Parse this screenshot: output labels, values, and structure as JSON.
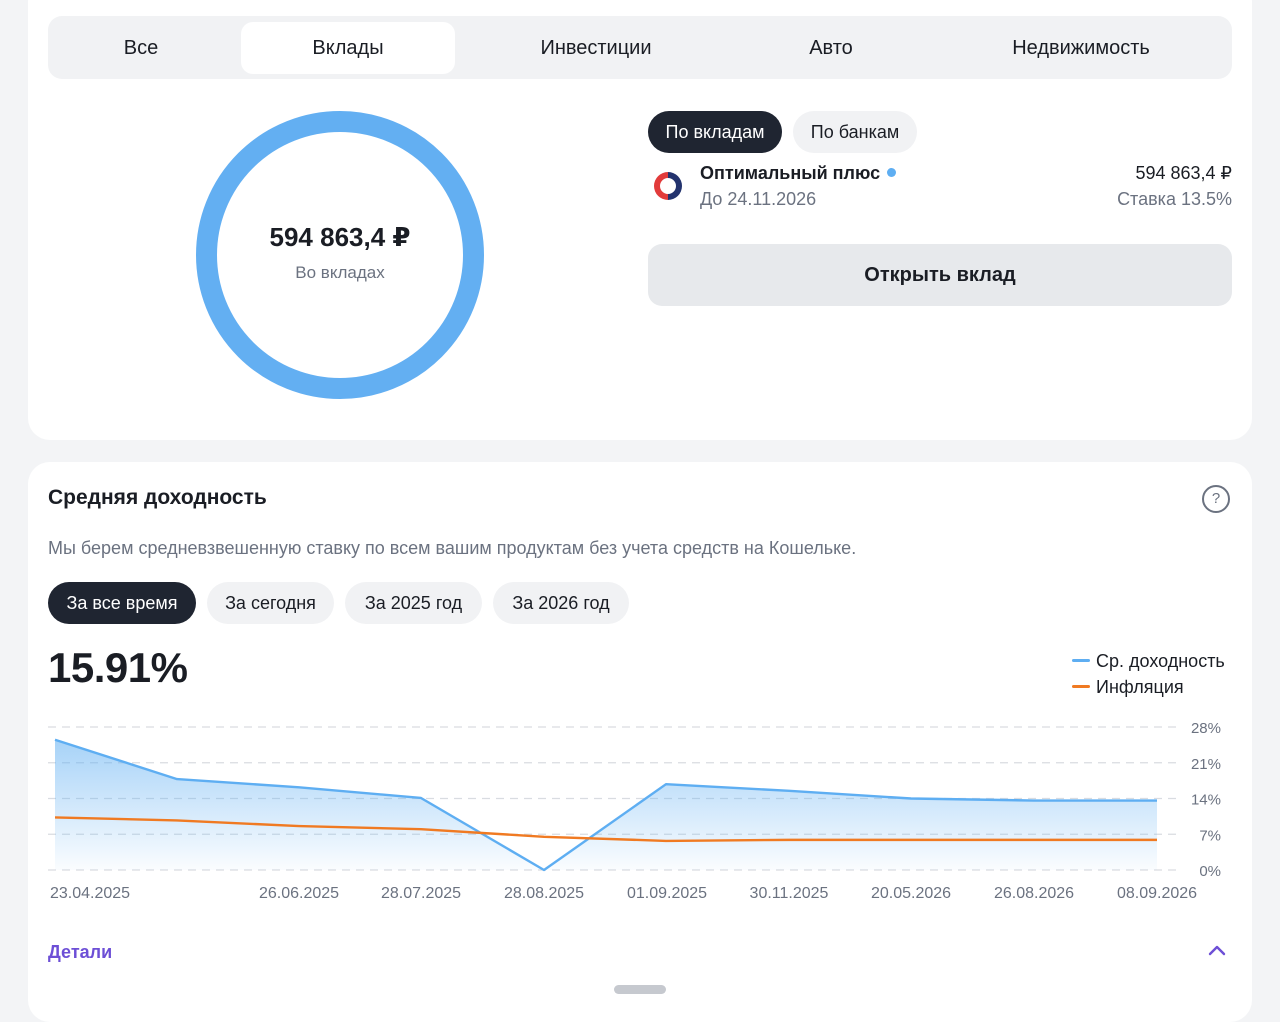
{
  "tabs": [
    {
      "label": "Все",
      "active": false
    },
    {
      "label": "Вклады",
      "active": true
    },
    {
      "label": "Инвестиции",
      "active": false
    },
    {
      "label": "Авто",
      "active": false
    },
    {
      "label": "Недвижимость",
      "active": false
    }
  ],
  "summary": {
    "amount": "594 863,4 ₽",
    "caption": "Во вкладах",
    "donut_color": "#63aff2",
    "donut_share": 1.0
  },
  "view_toggle": {
    "by_deposits": "По вкладам",
    "by_banks": "По банкам",
    "selected": "by_deposits"
  },
  "deposit": {
    "name": "Оптимальный плюс",
    "until": "До 24.11.2026",
    "amount": "594 863,4 ₽",
    "rate": "Ставка 13.5%",
    "logo_icon": "bank-logo-icon",
    "dot_color": "#5eaef2"
  },
  "open_button": "Открыть вклад",
  "yield_section": {
    "title": "Средняя доходность",
    "description": "Мы берем средневзвешенную ставку по всем вашим продуктам без учета средств на Кошельке.",
    "periods": [
      "За все время",
      "За сегодня",
      "За 2025 год",
      "За 2026 год"
    ],
    "selected_period": "За все время",
    "value": "15.91%",
    "details_label": "Детали"
  },
  "colors": {
    "accent_dark": "#1f2531",
    "yield_line": "#5eaef2",
    "inflation_line": "#f07a22",
    "link": "#6d4fd6"
  },
  "chart_data": {
    "type": "line",
    "x": [
      "23.04.2025",
      "",
      "26.06.2025",
      "28.07.2025",
      "28.08.2025",
      "01.09.2025",
      "30.11.2025",
      "20.05.2026",
      "26.08.2026",
      "08.09.2026"
    ],
    "y_ticks": [
      "28%",
      "21%",
      "14%",
      "7%",
      "0%"
    ],
    "ylim": [
      0,
      28
    ],
    "series": [
      {
        "name": "Ср. доходность",
        "color": "#5eaef2",
        "values": [
          25.5,
          17.8,
          16.2,
          14.1,
          0,
          16.8,
          15.5,
          14.0,
          13.6,
          13.6
        ]
      },
      {
        "name": "Инфляция",
        "color": "#f07a22",
        "values": [
          10.3,
          9.7,
          8.6,
          8.0,
          6.5,
          5.7,
          5.9,
          5.9,
          5.9,
          5.9
        ]
      }
    ],
    "grid": true,
    "legend_position": "top-right"
  }
}
